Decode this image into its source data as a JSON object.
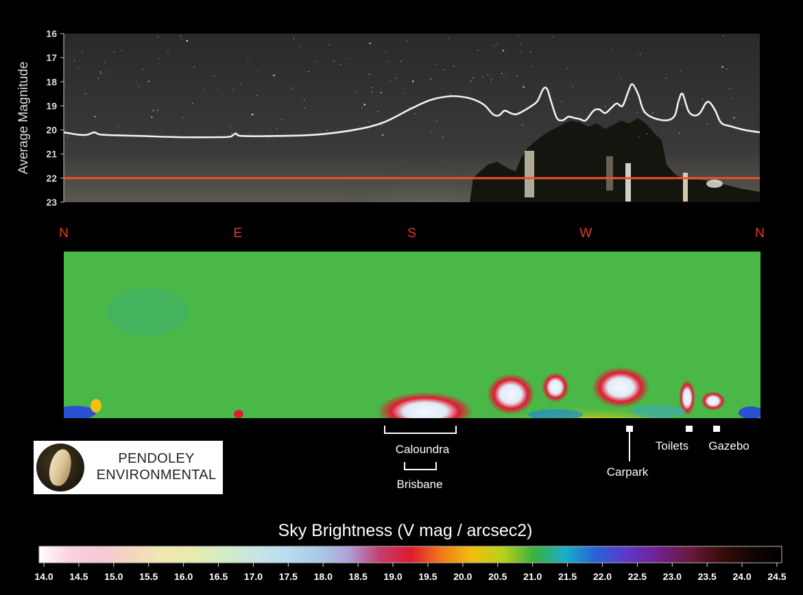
{
  "chart_data": [
    {
      "type": "line",
      "ylabel": "Average Magnitude",
      "ylim": [
        16,
        23
      ],
      "y_inverted": true,
      "y_ticks": [
        "16",
        "17",
        "18",
        "19",
        "20",
        "21",
        "22",
        "23"
      ],
      "x_unit": "azimuth_deg",
      "xlim": [
        0,
        360
      ],
      "x_ticks": [
        {
          "label": "N",
          "x": 0
        },
        {
          "label": "E",
          "x": 90
        },
        {
          "label": "S",
          "x": 180
        },
        {
          "label": "W",
          "x": 270
        },
        {
          "label": "N",
          "x": 360
        }
      ],
      "series": [
        {
          "points": [
            [
              0,
              20.1
            ],
            [
              8,
              20.2
            ],
            [
              12,
              20.2
            ],
            [
              16,
              20.1
            ],
            [
              20,
              20.2
            ],
            [
              40,
              20.25
            ],
            [
              60,
              20.3
            ],
            [
              80,
              20.3
            ],
            [
              86,
              20.28
            ],
            [
              89,
              20.15
            ],
            [
              92,
              20.25
            ],
            [
              110,
              20.25
            ],
            [
              130,
              20.2
            ],
            [
              150,
              20.0
            ],
            [
              165,
              19.7
            ],
            [
              180,
              19.1
            ],
            [
              190,
              18.75
            ],
            [
              200,
              18.6
            ],
            [
              208,
              18.65
            ],
            [
              214,
              18.8
            ],
            [
              218,
              19.0
            ],
            [
              222,
              19.35
            ],
            [
              225,
              19.4
            ],
            [
              228,
              19.2
            ],
            [
              231,
              19.3
            ],
            [
              234,
              19.35
            ],
            [
              238,
              19.2
            ],
            [
              242,
              19.0
            ],
            [
              245,
              18.8
            ],
            [
              248,
              18.3
            ],
            [
              250,
              18.3
            ],
            [
              252,
              18.8
            ],
            [
              255,
              19.5
            ],
            [
              258,
              19.6
            ],
            [
              261,
              19.45
            ],
            [
              264,
              19.5
            ],
            [
              267,
              19.55
            ],
            [
              270,
              19.6
            ],
            [
              274,
              19.2
            ],
            [
              277,
              19.15
            ],
            [
              280,
              19.3
            ],
            [
              283,
              19.1
            ],
            [
              286,
              18.9
            ],
            [
              289,
              19.0
            ],
            [
              292,
              18.4
            ],
            [
              294,
              18.1
            ],
            [
              297,
              18.5
            ],
            [
              300,
              19.2
            ],
            [
              305,
              19.5
            ],
            [
              312,
              19.6
            ],
            [
              316,
              19.4
            ],
            [
              318,
              18.8
            ],
            [
              320,
              18.5
            ],
            [
              323,
              19.2
            ],
            [
              326,
              19.4
            ],
            [
              329,
              19.3
            ],
            [
              332,
              18.9
            ],
            [
              334,
              18.85
            ],
            [
              337,
              19.2
            ],
            [
              340,
              19.7
            ],
            [
              345,
              19.85
            ],
            [
              352,
              20.0
            ],
            [
              360,
              20.1
            ]
          ]
        }
      ],
      "reference_line": 22.0,
      "colors": {
        "curve": "#f0f0f0",
        "reference": "#f0522a",
        "axis_text": "#dddddd",
        "direction_labels": "#e23b2b"
      }
    },
    {
      "type": "heatmap",
      "title": "Sky Brightness (V mag / arcsec2)",
      "colorbar_ticks": [
        "14.0",
        "14.5",
        "15.0",
        "15.5",
        "16.0",
        "16.5",
        "17.0",
        "17.5",
        "18.0",
        "18.5",
        "19.0",
        "19.5",
        "20.0",
        "20.5",
        "21.0",
        "21.5",
        "22.0",
        "22.5",
        "23.0",
        "23.5",
        "24.0",
        "24.5"
      ],
      "colorbar_range": [
        14.0,
        24.5
      ],
      "colorbar_colors": [
        "#ffffff",
        "#fbd0e0",
        "#f7c8d8",
        "#f4d6c0",
        "#f2e8b0",
        "#e6ecb0",
        "#d2ecc4",
        "#c8e4e4",
        "#b8dcf0",
        "#a8cce8",
        "#b0a0d8",
        "#c04070",
        "#e01a30",
        "#f07a18",
        "#f0c010",
        "#b8d018",
        "#38b040",
        "#18b0c8",
        "#2a60d8",
        "#6038c8",
        "#702090",
        "#6a1a40",
        "#3c0c0c",
        "#140404",
        "#000000"
      ],
      "dominant_values": {
        "background": "#4ab847",
        "annotation_text": "#ffffff"
      }
    }
  ],
  "annotations": [
    {
      "label": "Caloundra",
      "type": "bracket",
      "from_az": 183,
      "to_az": 220
    },
    {
      "label": "Brisbane",
      "type": "bracket",
      "from_az": 193,
      "to_az": 209
    },
    {
      "label": "Carpark",
      "type": "pin",
      "az": 290
    },
    {
      "label": "Toilets",
      "type": "marker",
      "az": 322
    },
    {
      "label": "Gazebo",
      "type": "marker",
      "az": 336
    }
  ],
  "logo": {
    "line1": "PENDOLEY",
    "line2": "ENVIRONMENTAL",
    "icon": "shell-icon"
  }
}
